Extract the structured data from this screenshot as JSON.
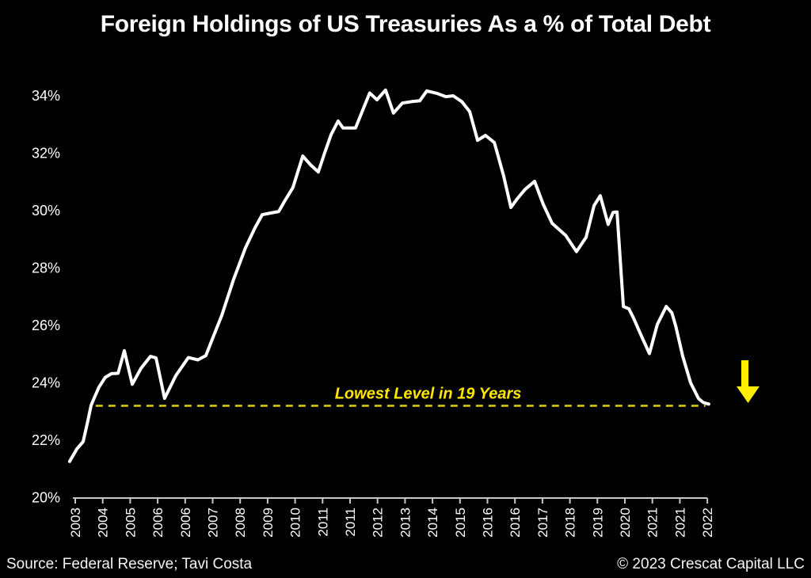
{
  "page": {
    "title": "Foreign Holdings of US Treasuries As a % of Total Debt",
    "footer": {
      "source_left": "Source: Federal Reserve; Tavi Costa",
      "copyright_right": "© 2023 Crescat Capital LLC"
    }
  },
  "chart_data": {
    "type": "line",
    "title": "Foreign Holdings of US Treasuries As a % of Total Debt",
    "xlabel": "",
    "ylabel": "",
    "grid": false,
    "legend": false,
    "background": "#000000",
    "ylim": [
      20,
      34.6
    ],
    "xlim": [
      2003.3,
      2022.75
    ],
    "y_ticks": [
      {
        "value": 34,
        "label": "34%"
      },
      {
        "value": 32,
        "label": "32%"
      },
      {
        "value": 30,
        "label": "30%"
      },
      {
        "value": 28,
        "label": "28%"
      },
      {
        "value": 26,
        "label": "26%"
      },
      {
        "value": 24,
        "label": "24%"
      },
      {
        "value": 22,
        "label": "22%"
      },
      {
        "value": 20,
        "label": "20%"
      }
    ],
    "x_ticks": [
      {
        "year": 2003.5,
        "label": "2003"
      },
      {
        "year": 2004.3333,
        "label": "2004"
      },
      {
        "year": 2005.1667,
        "label": "2005"
      },
      {
        "year": 2006.0,
        "label": "2006"
      },
      {
        "year": 2006.8333,
        "label": "2006"
      },
      {
        "year": 2007.6667,
        "label": "2007"
      },
      {
        "year": 2008.5,
        "label": "2008"
      },
      {
        "year": 2009.3333,
        "label": "2009"
      },
      {
        "year": 2010.1667,
        "label": "2010"
      },
      {
        "year": 2011.0,
        "label": "2011"
      },
      {
        "year": 2011.8333,
        "label": "2011"
      },
      {
        "year": 2012.6667,
        "label": "2012"
      },
      {
        "year": 2013.5,
        "label": "2013"
      },
      {
        "year": 2014.3333,
        "label": "2014"
      },
      {
        "year": 2015.1667,
        "label": "2015"
      },
      {
        "year": 2016.0,
        "label": "2016"
      },
      {
        "year": 2016.8333,
        "label": "2016"
      },
      {
        "year": 2017.6667,
        "label": "2017"
      },
      {
        "year": 2018.5,
        "label": "2018"
      },
      {
        "year": 2019.3333,
        "label": "2019"
      },
      {
        "year": 2020.1667,
        "label": "2020"
      },
      {
        "year": 2021.0,
        "label": "2021"
      },
      {
        "year": 2021.8333,
        "label": "2021"
      },
      {
        "year": 2022.6667,
        "label": "2022"
      }
    ],
    "series": [
      {
        "name": "Foreign holdings of US Treasuries as % of total debt",
        "points": [
          [
            2003.33,
            21.26
          ],
          [
            2003.55,
            21.7
          ],
          [
            2003.74,
            21.95
          ],
          [
            2003.88,
            22.66
          ],
          [
            2003.98,
            23.21
          ],
          [
            2004.08,
            23.49
          ],
          [
            2004.22,
            23.85
          ],
          [
            2004.41,
            24.19
          ],
          [
            2004.6,
            24.32
          ],
          [
            2004.8,
            24.33
          ],
          [
            2004.99,
            25.12
          ],
          [
            2005.23,
            23.95
          ],
          [
            2005.49,
            24.5
          ],
          [
            2005.78,
            24.92
          ],
          [
            2005.95,
            24.87
          ],
          [
            2006.21,
            23.46
          ],
          [
            2006.55,
            24.25
          ],
          [
            2006.93,
            24.88
          ],
          [
            2007.22,
            24.8
          ],
          [
            2007.46,
            24.95
          ],
          [
            2007.7,
            25.65
          ],
          [
            2007.94,
            26.34
          ],
          [
            2008.3,
            27.6
          ],
          [
            2008.66,
            28.7
          ],
          [
            2008.95,
            29.4
          ],
          [
            2009.17,
            29.86
          ],
          [
            2009.67,
            29.97
          ],
          [
            2009.86,
            30.35
          ],
          [
            2010.1,
            30.8
          ],
          [
            2010.4,
            31.9
          ],
          [
            2010.63,
            31.6
          ],
          [
            2010.87,
            31.35
          ],
          [
            2011.06,
            32.0
          ],
          [
            2011.26,
            32.65
          ],
          [
            2011.47,
            33.12
          ],
          [
            2011.62,
            32.88
          ],
          [
            2012.0,
            32.88
          ],
          [
            2012.43,
            34.1
          ],
          [
            2012.65,
            33.86
          ],
          [
            2012.91,
            34.2
          ],
          [
            2013.15,
            33.4
          ],
          [
            2013.42,
            33.75
          ],
          [
            2013.71,
            33.8
          ],
          [
            2013.95,
            33.83
          ],
          [
            2014.16,
            34.17
          ],
          [
            2014.48,
            34.08
          ],
          [
            2014.74,
            33.97
          ],
          [
            2014.96,
            34.0
          ],
          [
            2015.22,
            33.8
          ],
          [
            2015.46,
            33.45
          ],
          [
            2015.7,
            32.45
          ],
          [
            2015.94,
            32.62
          ],
          [
            2016.21,
            32.37
          ],
          [
            2016.49,
            31.21
          ],
          [
            2016.71,
            30.11
          ],
          [
            2016.9,
            30.41
          ],
          [
            2017.14,
            30.74
          ],
          [
            2017.43,
            31.02
          ],
          [
            2017.69,
            30.22
          ],
          [
            2017.96,
            29.56
          ],
          [
            2018.17,
            29.34
          ],
          [
            2018.37,
            29.14
          ],
          [
            2018.7,
            28.57
          ],
          [
            2018.99,
            29.07
          ],
          [
            2019.23,
            30.17
          ],
          [
            2019.42,
            30.52
          ],
          [
            2019.66,
            29.52
          ],
          [
            2019.81,
            29.94
          ],
          [
            2019.93,
            29.95
          ],
          [
            2020.12,
            26.66
          ],
          [
            2020.29,
            26.58
          ],
          [
            2020.43,
            26.25
          ],
          [
            2020.7,
            25.55
          ],
          [
            2020.91,
            25.02
          ],
          [
            2021.15,
            26.03
          ],
          [
            2021.42,
            26.66
          ],
          [
            2021.59,
            26.44
          ],
          [
            2021.71,
            25.97
          ],
          [
            2021.92,
            24.93
          ],
          [
            2022.16,
            24.0
          ],
          [
            2022.4,
            23.45
          ],
          [
            2022.55,
            23.31
          ],
          [
            2022.71,
            23.26
          ]
        ]
      }
    ],
    "annotation": {
      "text": "Lowest Level in 19 Years",
      "level_pct": 23.2,
      "from_year": 2004.12,
      "to_year": 2022.61,
      "text_center_year": 2014.2,
      "line_color": "#e3d400",
      "text_color": "#ffe600"
    },
    "marker": {
      "name": "down-arrow",
      "color": "#ffee00"
    },
    "colors": {
      "line": "#ffffff",
      "axis": "#c8c8c8",
      "text": "#ffffff",
      "background": "#000000"
    }
  }
}
